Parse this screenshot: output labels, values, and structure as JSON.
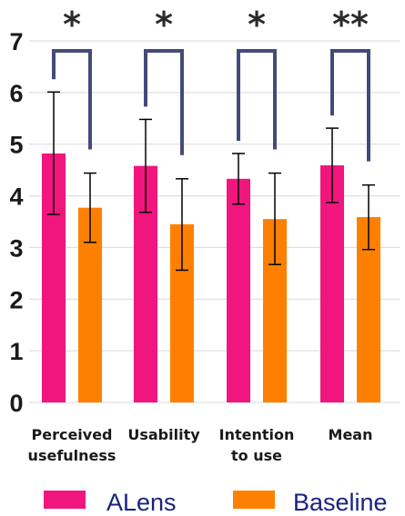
{
  "chart_data": {
    "type": "bar",
    "title": "",
    "xlabel": "",
    "ylabel": "",
    "ylim": [
      0,
      7
    ],
    "yticks": [
      "0",
      "1",
      "2",
      "3",
      "4",
      "5",
      "6",
      "7"
    ],
    "grid": true,
    "legend_position": "bottom",
    "categories": [
      [
        "Perceived",
        "usefulness"
      ],
      [
        "Usability"
      ],
      [
        "Intention",
        "to use"
      ],
      [
        "Mean"
      ]
    ],
    "series": [
      {
        "name": "ALens",
        "color": "#f0167e",
        "values": [
          4.82,
          4.58,
          4.33,
          4.59
        ],
        "error_low": [
          3.64,
          3.68,
          3.84,
          3.87
        ],
        "error_high": [
          6.01,
          5.48,
          4.82,
          5.31
        ]
      },
      {
        "name": "Baseline",
        "color": "#ff8000",
        "values": [
          3.77,
          3.45,
          3.55,
          3.59
        ],
        "error_low": [
          3.1,
          2.56,
          2.67,
          2.96
        ],
        "error_high": [
          4.44,
          4.33,
          4.44,
          4.21
        ]
      }
    ],
    "significance": [
      "*",
      "*",
      "*",
      "**"
    ],
    "bracket_color": "#454a7a"
  }
}
